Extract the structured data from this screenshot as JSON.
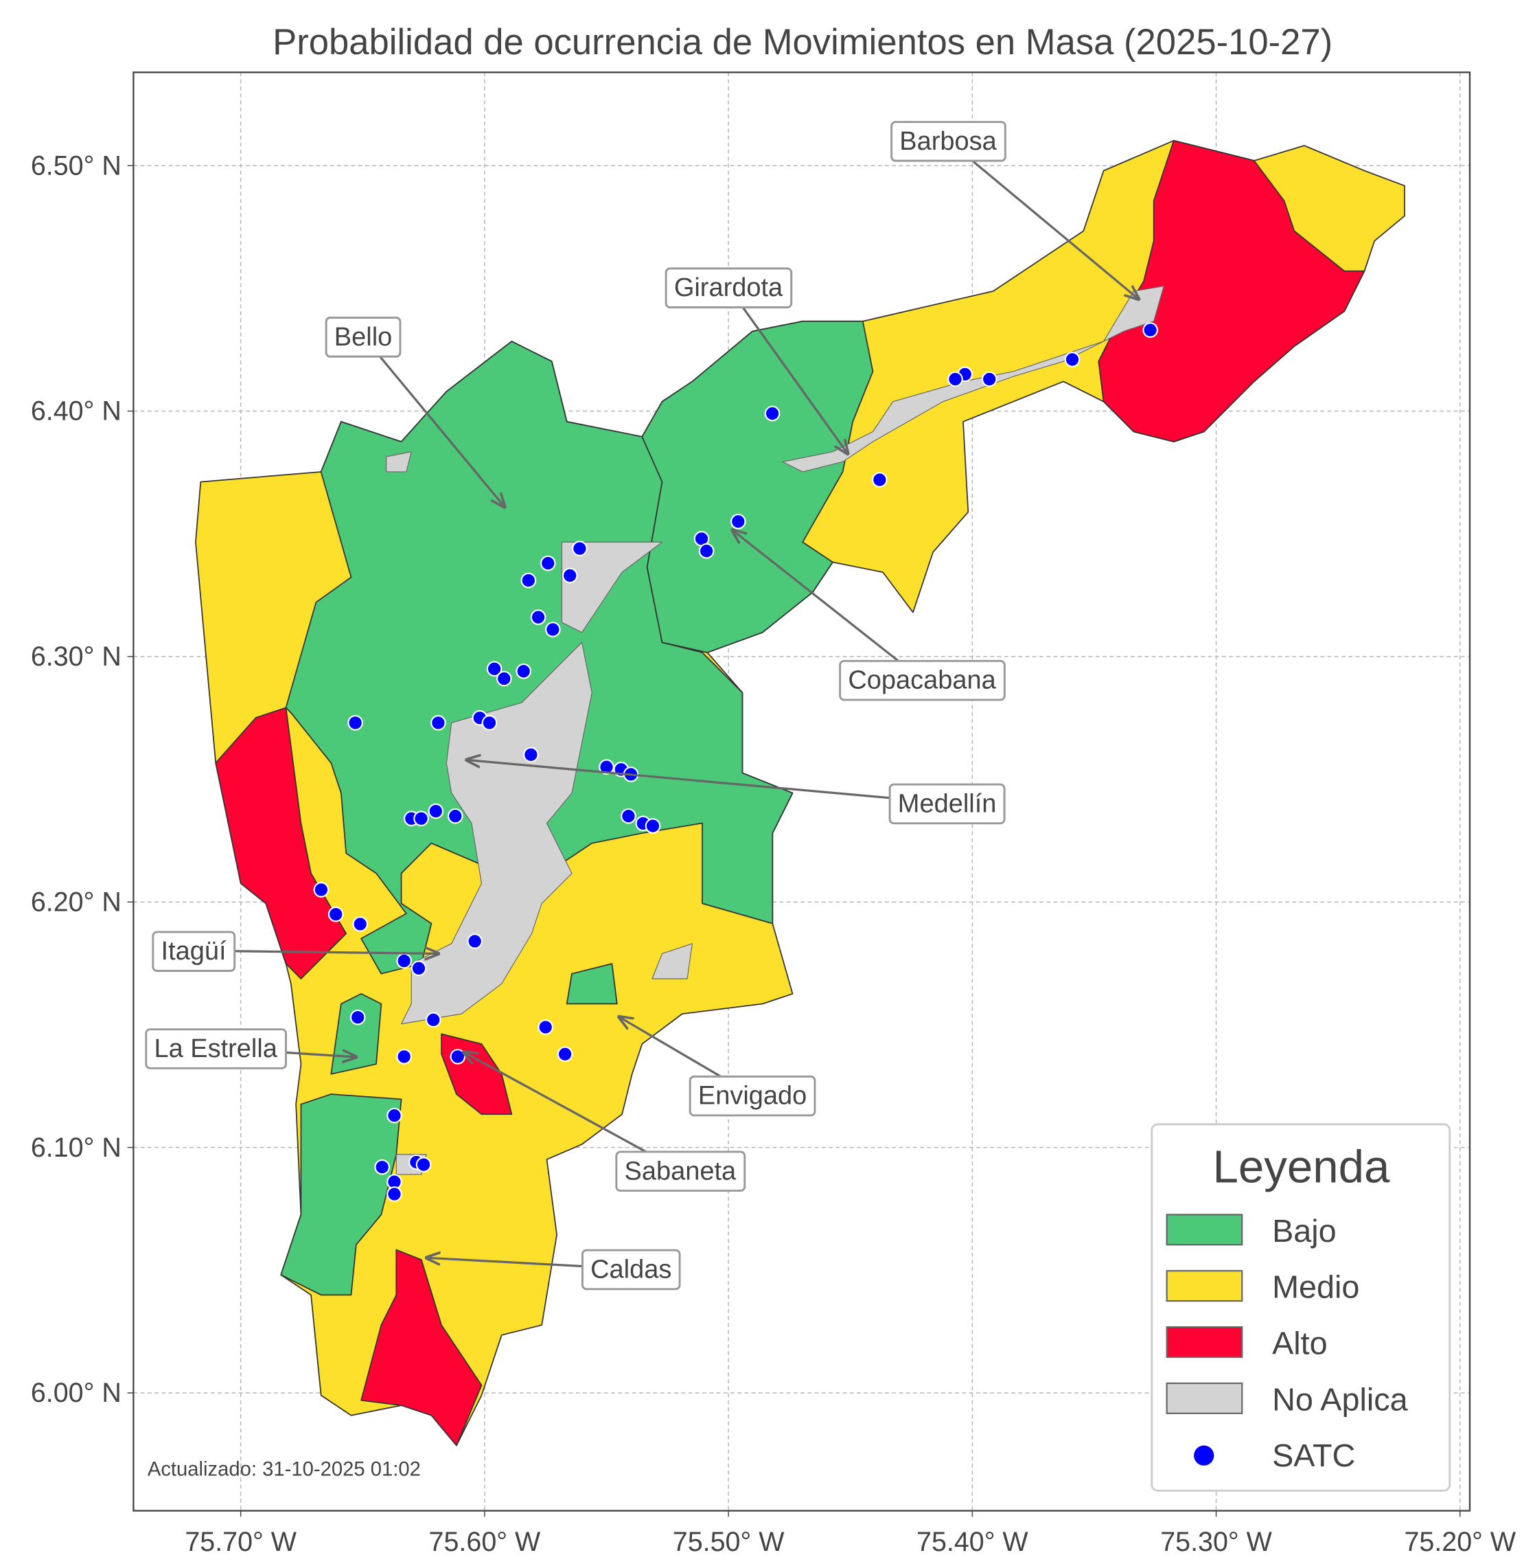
{
  "chart_data": {
    "type": "map",
    "title": "Probabilidad de ocurrencia de Movimientos en Masa (2025-10-27)",
    "xlim": [
      -75.744,
      -75.196
    ],
    "ylim": [
      5.952,
      6.538
    ],
    "xticks": [
      {
        "value": -75.7,
        "label": "75.70° W"
      },
      {
        "value": -75.6,
        "label": "75.60° W"
      },
      {
        "value": -75.5,
        "label": "75.50° W"
      },
      {
        "value": -75.4,
        "label": "75.40° W"
      },
      {
        "value": -75.3,
        "label": "75.30° W"
      },
      {
        "value": -75.2,
        "label": "75.20° W"
      }
    ],
    "yticks": [
      {
        "value": 6.0,
        "label": "6.00° N"
      },
      {
        "value": 6.1,
        "label": "6.10° N"
      },
      {
        "value": 6.2,
        "label": "6.20° N"
      },
      {
        "value": 6.3,
        "label": "6.30° N"
      },
      {
        "value": 6.4,
        "label": "6.40° N"
      },
      {
        "value": 6.5,
        "label": "6.50° N"
      }
    ],
    "grid": true,
    "zones": [
      {
        "name": "Bajo",
        "color": "#4bc978"
      },
      {
        "name": "Medio",
        "color": "#fde02c"
      },
      {
        "name": "Alto",
        "color": "#fe0233"
      },
      {
        "name": "No Aplica",
        "color": "#d3d3d3"
      }
    ],
    "series": [
      {
        "name": "SATC",
        "color": "#0000ff",
        "x": [
          -75.327,
          -75.359,
          -75.393,
          -75.403,
          -75.407,
          -75.482,
          -75.438,
          -75.496,
          -75.511,
          -75.509,
          -75.561,
          -75.574,
          -75.582,
          -75.565,
          -75.578,
          -75.572,
          -75.596,
          -75.592,
          -75.584,
          -75.653,
          -75.619,
          -75.602,
          -75.598,
          -75.581,
          -75.55,
          -75.544,
          -75.54,
          -75.63,
          -75.626,
          -75.62,
          -75.612,
          -75.541,
          -75.535,
          -75.531,
          -75.667,
          -75.661,
          -75.651,
          -75.604,
          -75.633,
          -75.627,
          -75.652,
          -75.621,
          -75.575,
          -75.567,
          -75.633,
          -75.611,
          -75.637,
          -75.642,
          -75.628,
          -75.625,
          -75.637,
          -75.637
        ],
        "y": [
          6.433,
          6.421,
          6.413,
          6.415,
          6.413,
          6.399,
          6.372,
          6.355,
          6.348,
          6.343,
          6.344,
          6.338,
          6.331,
          6.333,
          6.316,
          6.311,
          6.295,
          6.291,
          6.294,
          6.273,
          6.273,
          6.275,
          6.273,
          6.26,
          6.255,
          6.254,
          6.252,
          6.234,
          6.234,
          6.237,
          6.235,
          6.235,
          6.232,
          6.231,
          6.205,
          6.195,
          6.191,
          6.184,
          6.176,
          6.173,
          6.153,
          6.152,
          6.149,
          6.138,
          6.137,
          6.137,
          6.113,
          6.092,
          6.094,
          6.093,
          6.086,
          6.081
        ]
      }
    ],
    "legend_title": "Leyenda",
    "legend_position": "lower right",
    "annotations": [
      "Barbosa",
      "Girardota",
      "Bello",
      "Copacabana",
      "Medellín",
      "Itagüí",
      "La Estrella",
      "Envigado",
      "Sabaneta",
      "Caldas"
    ],
    "footnote": "Actualizado: 31-10-2025 01:02"
  }
}
